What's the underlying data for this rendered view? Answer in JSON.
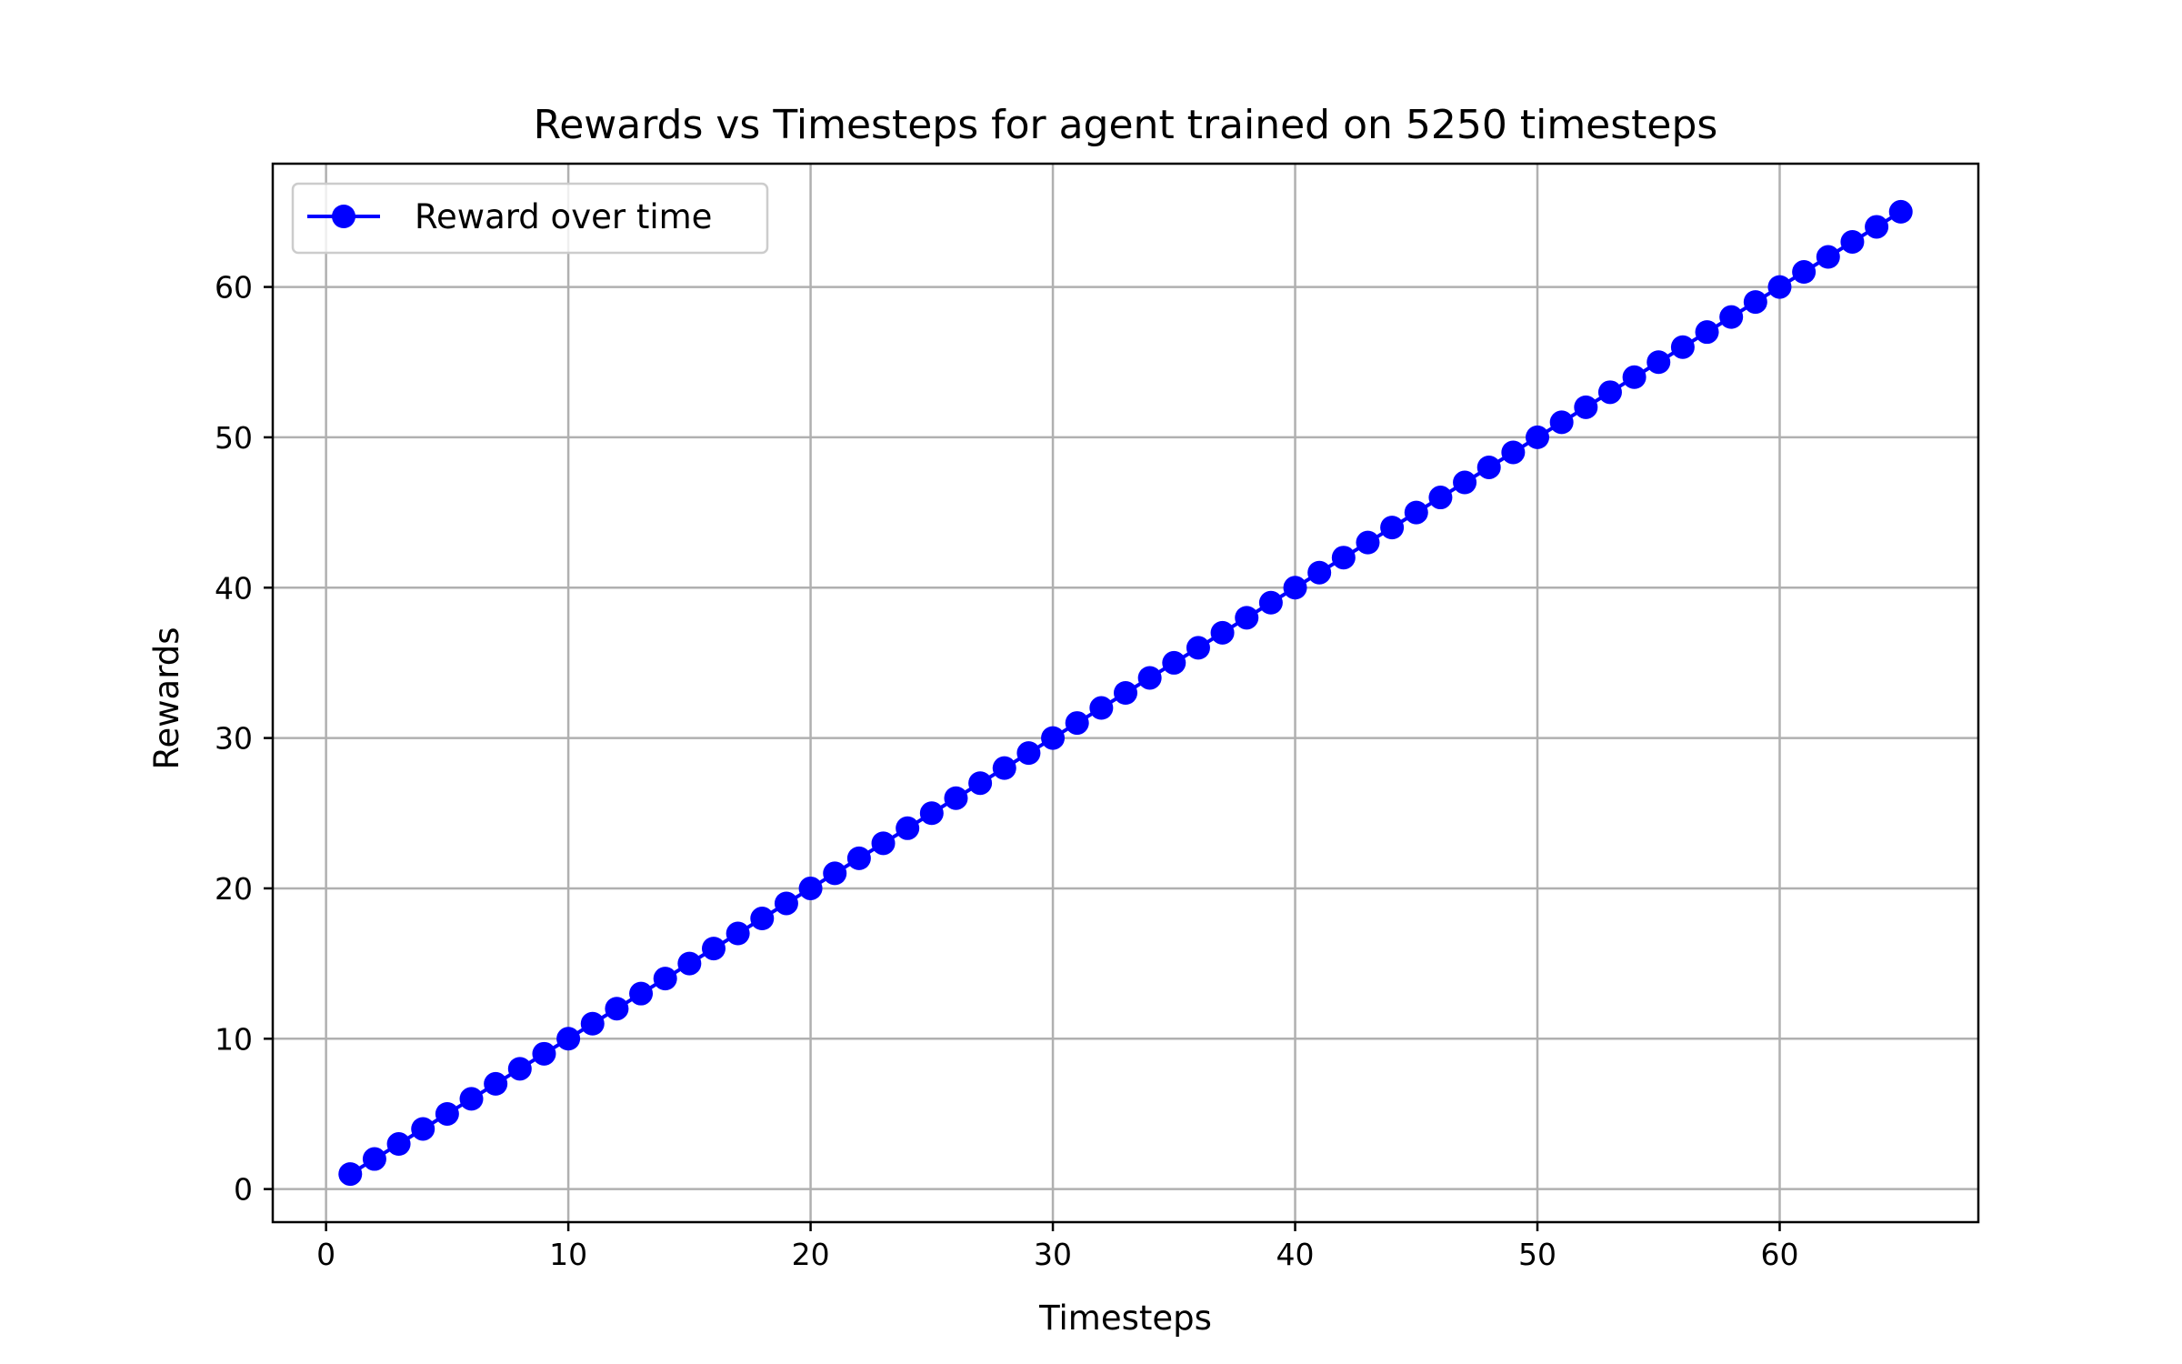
{
  "chart_data": {
    "type": "line",
    "title": "Rewards vs Timesteps for agent trained on 5250 timesteps",
    "xlabel": "Timesteps",
    "ylabel": "Rewards",
    "xlim": [
      -2.2,
      68.2
    ],
    "ylim": [
      -2.2,
      68.2
    ],
    "xticks": [
      0,
      10,
      20,
      30,
      40,
      50,
      60
    ],
    "yticks": [
      0,
      10,
      20,
      30,
      40,
      50,
      60
    ],
    "grid": true,
    "legend_position": "top-left",
    "series": [
      {
        "name": "Reward over time",
        "color": "#0000ff",
        "marker": "circle",
        "x": [
          1,
          2,
          3,
          4,
          5,
          6,
          7,
          8,
          9,
          10,
          11,
          12,
          13,
          14,
          15,
          16,
          17,
          18,
          19,
          20,
          21,
          22,
          23,
          24,
          25,
          26,
          27,
          28,
          29,
          30,
          31,
          32,
          33,
          34,
          35,
          36,
          37,
          38,
          39,
          40,
          41,
          42,
          43,
          44,
          45,
          46,
          47,
          48,
          49,
          50,
          51,
          52,
          53,
          54,
          55,
          56,
          57,
          58,
          59,
          60,
          61,
          62,
          63,
          64,
          65
        ],
        "y": [
          1,
          2,
          3,
          4,
          5,
          6,
          7,
          8,
          9,
          10,
          11,
          12,
          13,
          14,
          15,
          16,
          17,
          18,
          19,
          20,
          21,
          22,
          23,
          24,
          25,
          26,
          27,
          28,
          29,
          30,
          31,
          32,
          33,
          34,
          35,
          36,
          37,
          38,
          39,
          40,
          41,
          42,
          43,
          44,
          45,
          46,
          47,
          48,
          49,
          50,
          51,
          52,
          53,
          54,
          55,
          56,
          57,
          58,
          59,
          60,
          61,
          62,
          63,
          64,
          65
        ]
      }
    ]
  }
}
